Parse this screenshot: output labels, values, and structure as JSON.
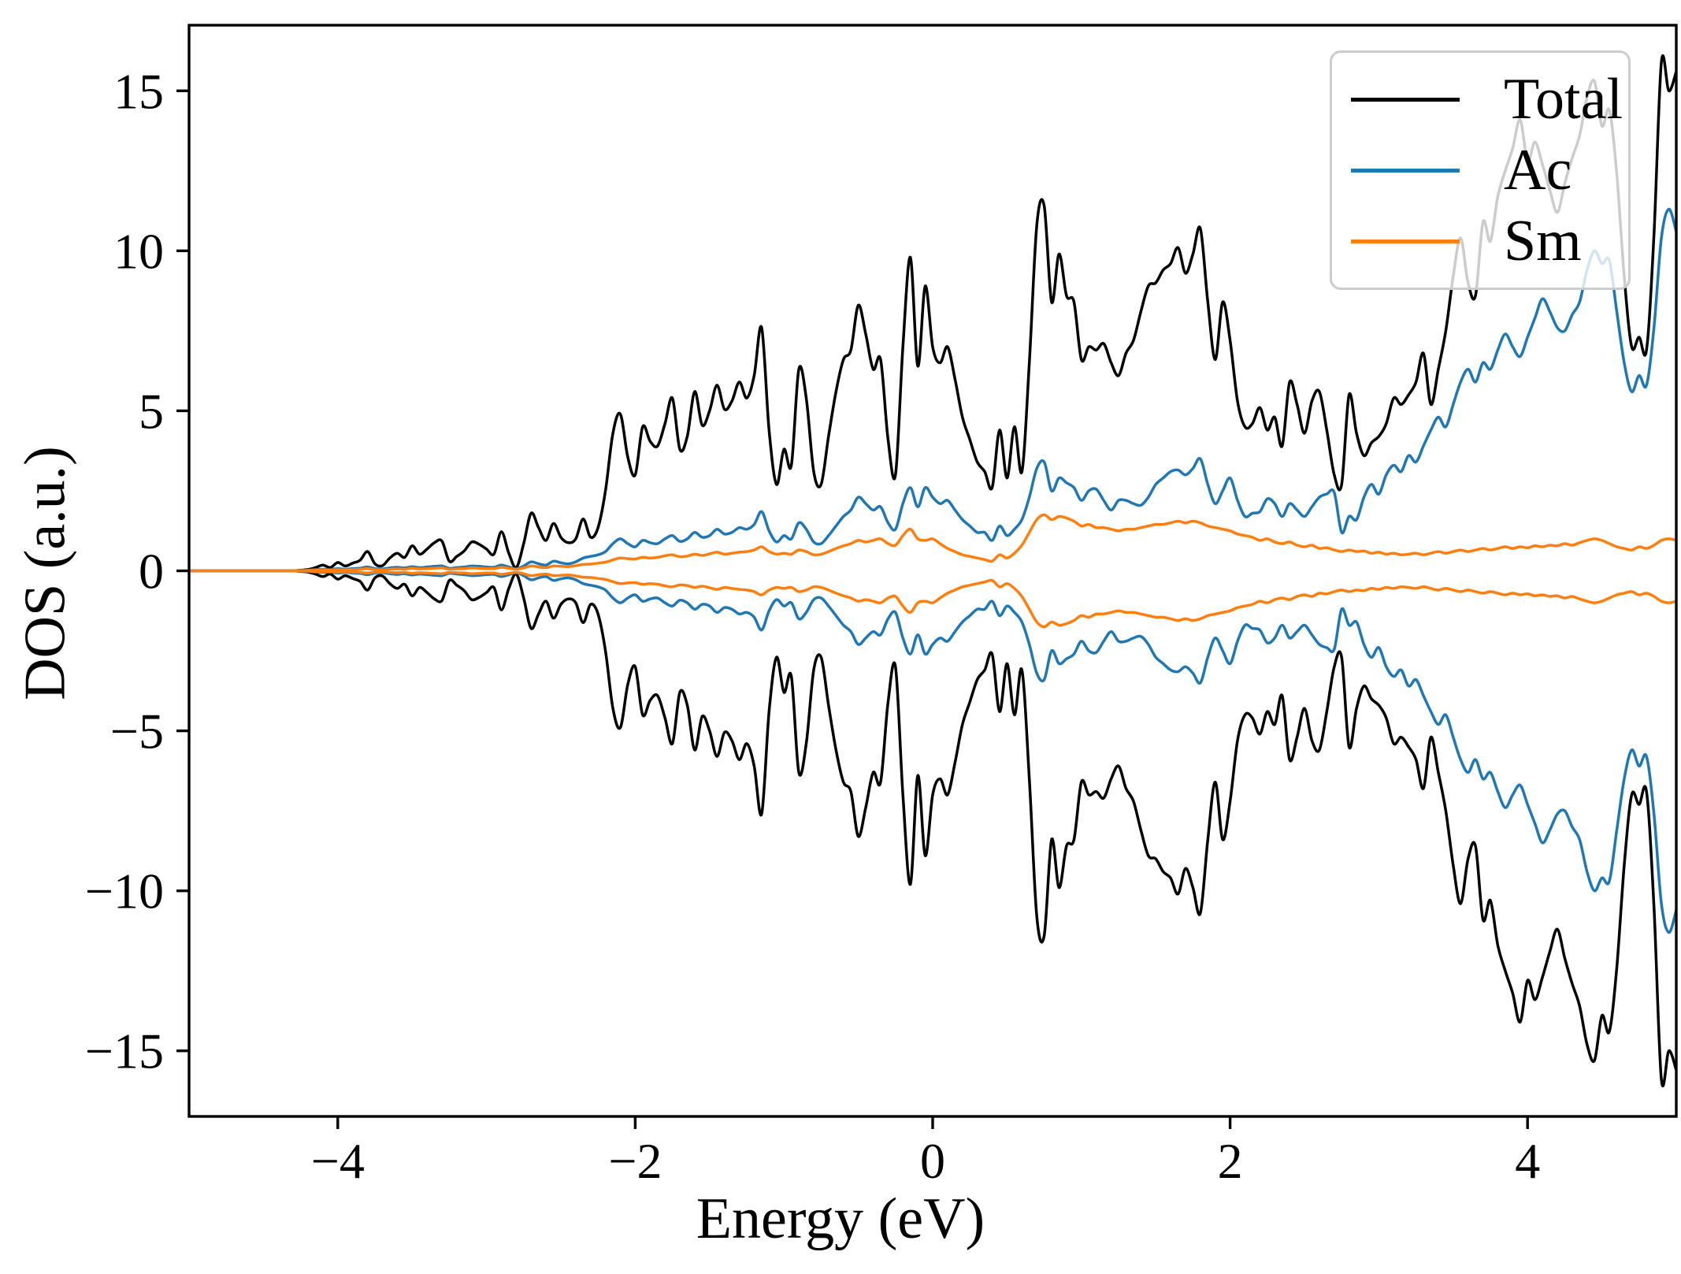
{
  "chart_data": {
    "type": "line",
    "title": "",
    "xlabel": "Energy (eV)",
    "ylabel": "DOS (a.u.)",
    "xlim": [
      -5,
      5
    ],
    "ylim": [
      -17.05,
      17.05
    ],
    "xticks": [
      -4,
      -2,
      0,
      2,
      4
    ],
    "xtick_labels": [
      "−4",
      "−2",
      "0",
      "2",
      "4"
    ],
    "yticks": [
      -15,
      -10,
      -5,
      0,
      5,
      10,
      15
    ],
    "ytick_labels": [
      "−15",
      "−10",
      "−5",
      "0",
      "5",
      "10",
      "15"
    ],
    "grid": false,
    "axis_color": "#000000",
    "background_color": "#ffffff",
    "legend": {
      "position": "upper right",
      "entries": [
        {
          "label": "Total",
          "color": "#000000"
        },
        {
          "label": "Ac",
          "color": "#1f77b4"
        },
        {
          "label": "Sm",
          "color": "#ff7f0e"
        }
      ]
    },
    "spin_polarized": true,
    "note_spin": "values_up are the spin-up DOS; spin-down curves are the mirror (negative) of values_up",
    "x_start": -5.0,
    "x_step": 0.05,
    "series": [
      {
        "name": "Total",
        "color": "#000000",
        "values_up": [
          0,
          0,
          0,
          0,
          0,
          0,
          0,
          0,
          0,
          0,
          0,
          0,
          0,
          0,
          0,
          0.02,
          0.04,
          0.1,
          0.18,
          0.1,
          0.26,
          0.15,
          0.24,
          0.33,
          0.6,
          0.22,
          0.16,
          0.4,
          0.55,
          0.42,
          0.78,
          0.52,
          0.68,
          0.88,
          0.93,
          0.3,
          0.45,
          0.62,
          0.9,
          0.83,
          0.68,
          0.52,
          1.22,
          0.55,
          0.1,
          0.85,
          1.8,
          1.35,
          0.95,
          1.48,
          1.05,
          0.88,
          1.0,
          1.62,
          1.05,
          1.35,
          2.5,
          4.3,
          4.9,
          3.55,
          3.0,
          4.5,
          4.05,
          3.9,
          4.6,
          5.4,
          3.8,
          4.2,
          5.6,
          4.55,
          5.0,
          5.8,
          5.05,
          5.3,
          5.9,
          5.4,
          6.1,
          7.6,
          4.4,
          2.7,
          3.8,
          3.3,
          6.3,
          5.4,
          3.1,
          2.7,
          4.2,
          5.6,
          6.6,
          6.9,
          8.3,
          7.4,
          6.3,
          6.6,
          4.1,
          3.0,
          7.0,
          9.8,
          6.4,
          8.9,
          7.0,
          6.5,
          7.0,
          6.0,
          4.8,
          4.1,
          3.4,
          3.1,
          2.6,
          4.4,
          2.9,
          4.5,
          3.1,
          6.5,
          10.8,
          11.4,
          8.4,
          9.9,
          8.6,
          8.4,
          6.6,
          7.0,
          6.9,
          7.1,
          6.5,
          6.1,
          6.8,
          7.2,
          8.1,
          8.9,
          9.0,
          9.4,
          9.6,
          10.1,
          9.3,
          9.9,
          10.7,
          8.4,
          6.6,
          8.4,
          7.2,
          5.3,
          4.5,
          4.6,
          5.1,
          4.4,
          4.8,
          3.9,
          5.9,
          5.2,
          4.3,
          5.3,
          5.6,
          4.4,
          3.0,
          2.7,
          5.5,
          4.3,
          3.6,
          4.0,
          4.2,
          4.6,
          5.4,
          5.2,
          5.5,
          5.9,
          6.8,
          5.2,
          6.3,
          7.5,
          9.2,
          10.4,
          9.0,
          8.6,
          10.9,
          10.3,
          11.7,
          12.5,
          13.2,
          14.1,
          12.8,
          13.4,
          12.7,
          11.9,
          11.2,
          12.1,
          12.9,
          13.6,
          14.8,
          15.3,
          13.9,
          14.4,
          12.4,
          9.2,
          7.0,
          7.3,
          6.9,
          10.5,
          15.9,
          15.0,
          15.6
        ]
      },
      {
        "name": "Ac",
        "color": "#1f77b4",
        "values_up": [
          0,
          0,
          0,
          0,
          0,
          0,
          0,
          0,
          0,
          0,
          0,
          0,
          0,
          0,
          0,
          0.01,
          0.02,
          0.04,
          0.05,
          0.04,
          0.07,
          0.05,
          0.07,
          0.08,
          0.12,
          0.07,
          0.06,
          0.09,
          0.11,
          0.09,
          0.13,
          0.1,
          0.12,
          0.14,
          0.15,
          0.08,
          0.1,
          0.12,
          0.15,
          0.14,
          0.12,
          0.11,
          0.18,
          0.12,
          0.06,
          0.15,
          0.28,
          0.22,
          0.18,
          0.3,
          0.25,
          0.22,
          0.28,
          0.4,
          0.45,
          0.5,
          0.6,
          0.85,
          1.0,
          0.85,
          0.75,
          0.95,
          0.88,
          0.85,
          1.0,
          1.1,
          0.92,
          1.0,
          1.2,
          1.05,
          1.1,
          1.3,
          1.15,
          1.2,
          1.35,
          1.3,
          1.45,
          1.85,
          1.25,
          0.9,
          1.1,
          1.0,
          1.5,
          1.3,
          0.9,
          0.85,
          1.1,
          1.4,
          1.7,
          1.9,
          2.3,
          2.1,
          1.9,
          2.0,
          1.5,
          1.3,
          2.1,
          2.6,
          2.0,
          2.6,
          2.3,
          2.1,
          2.2,
          1.9,
          1.6,
          1.4,
          1.2,
          1.2,
          0.95,
          1.4,
          1.1,
          1.3,
          1.6,
          2.3,
          3.2,
          3.4,
          2.5,
          2.9,
          2.75,
          2.6,
          2.2,
          2.5,
          2.55,
          2.2,
          1.9,
          2.2,
          2.2,
          2.1,
          2.05,
          2.3,
          2.7,
          2.9,
          3.1,
          3.15,
          3.0,
          3.2,
          3.5,
          2.7,
          2.1,
          2.5,
          2.9,
          2.2,
          1.7,
          1.8,
          1.85,
          2.25,
          2.1,
          1.7,
          2.1,
          1.9,
          1.7,
          2.0,
          2.3,
          2.4,
          2.45,
          1.2,
          1.7,
          1.6,
          2.3,
          2.7,
          2.4,
          3.0,
          3.3,
          3.1,
          3.6,
          3.4,
          3.9,
          4.4,
          4.8,
          4.5,
          5.2,
          5.9,
          6.3,
          5.9,
          6.5,
          6.3,
          6.9,
          7.4,
          7.0,
          6.7,
          7.3,
          7.9,
          8.5,
          8.1,
          7.6,
          7.5,
          8.0,
          8.4,
          9.4,
          10.0,
          9.6,
          9.7,
          8.1,
          6.5,
          5.6,
          6.1,
          5.8,
          7.6,
          10.4,
          11.3,
          10.6
        ]
      },
      {
        "name": "Sm",
        "color": "#ff7f0e",
        "values_up": [
          0,
          0,
          0,
          0,
          0,
          0,
          0,
          0,
          0,
          0,
          0,
          0,
          0,
          0,
          0,
          0.01,
          0.01,
          0.02,
          0.03,
          0.02,
          0.04,
          0.03,
          0.04,
          0.05,
          0.07,
          0.04,
          0.03,
          0.05,
          0.06,
          0.05,
          0.08,
          0.06,
          0.07,
          0.08,
          0.09,
          0.05,
          0.06,
          0.07,
          0.09,
          0.08,
          0.07,
          0.07,
          0.11,
          0.08,
          0.05,
          0.09,
          0.15,
          0.12,
          0.1,
          0.15,
          0.14,
          0.13,
          0.16,
          0.2,
          0.21,
          0.24,
          0.27,
          0.34,
          0.4,
          0.38,
          0.37,
          0.42,
          0.4,
          0.42,
          0.47,
          0.5,
          0.44,
          0.46,
          0.52,
          0.48,
          0.53,
          0.58,
          0.52,
          0.55,
          0.58,
          0.6,
          0.65,
          0.75,
          0.6,
          0.52,
          0.55,
          0.52,
          0.65,
          0.6,
          0.5,
          0.52,
          0.6,
          0.7,
          0.78,
          0.85,
          0.95,
          0.9,
          0.95,
          1.0,
          0.85,
          0.8,
          1.1,
          1.3,
          1.0,
          0.95,
          1.0,
          0.85,
          0.7,
          0.6,
          0.5,
          0.45,
          0.4,
          0.35,
          0.3,
          0.5,
          0.4,
          0.55,
          0.8,
          1.2,
          1.6,
          1.75,
          1.6,
          1.7,
          1.65,
          1.55,
          1.4,
          1.45,
          1.35,
          1.35,
          1.3,
          1.25,
          1.3,
          1.3,
          1.35,
          1.4,
          1.45,
          1.45,
          1.5,
          1.55,
          1.5,
          1.55,
          1.5,
          1.4,
          1.35,
          1.3,
          1.25,
          1.15,
          1.1,
          1.05,
          0.95,
          1.0,
          0.9,
          0.85,
          0.9,
          0.8,
          0.75,
          0.8,
          0.7,
          0.72,
          0.65,
          0.6,
          0.65,
          0.6,
          0.62,
          0.55,
          0.58,
          0.52,
          0.55,
          0.5,
          0.52,
          0.55,
          0.5,
          0.55,
          0.6,
          0.55,
          0.6,
          0.65,
          0.6,
          0.65,
          0.7,
          0.65,
          0.7,
          0.75,
          0.7,
          0.75,
          0.72,
          0.78,
          0.75,
          0.8,
          0.78,
          0.85,
          0.8,
          0.88,
          0.95,
          1.0,
          0.95,
          0.85,
          0.75,
          0.7,
          0.65,
          0.75,
          0.7,
          0.8,
          0.95,
          1.0,
          0.95
        ]
      }
    ]
  }
}
